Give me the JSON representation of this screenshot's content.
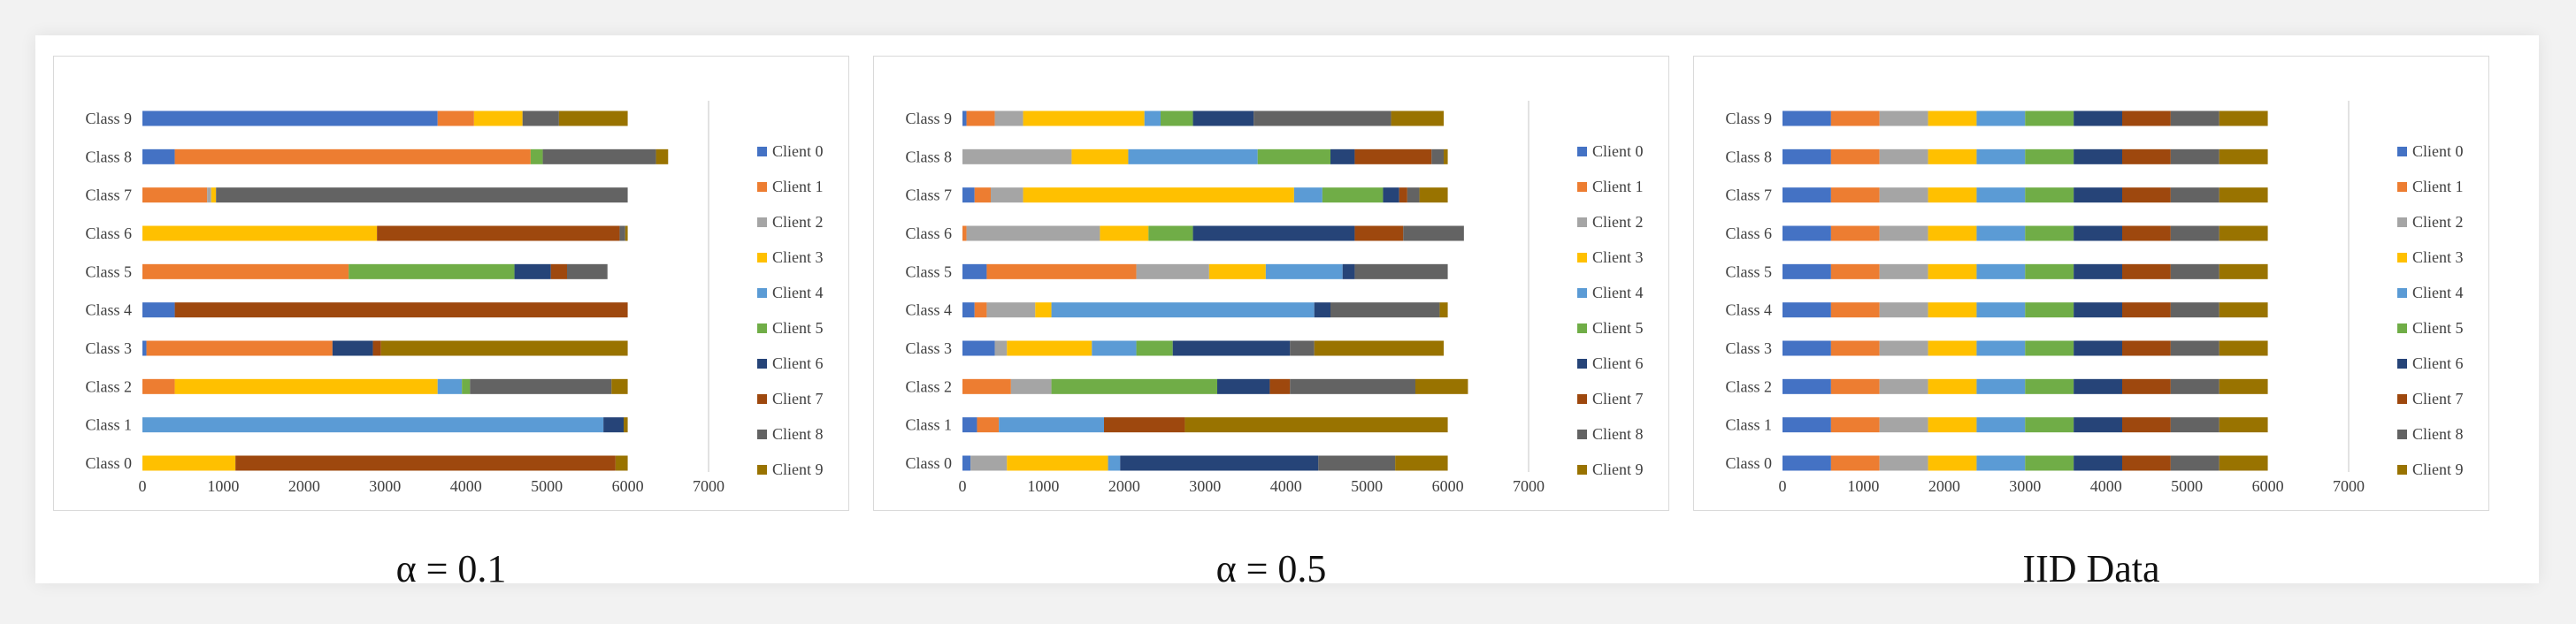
{
  "chart_data": [
    {
      "type": "bar",
      "orientation": "horizontal",
      "stacked": true,
      "caption": "α = 0.1",
      "categories": [
        "Class 0",
        "Class 1",
        "Class 2",
        "Class 3",
        "Class 4",
        "Class 5",
        "Class 6",
        "Class 7",
        "Class 8",
        "Class 9"
      ],
      "xticks": [
        "0",
        "1000",
        "2000",
        "3000",
        "4000",
        "5000",
        "6000",
        "7000"
      ],
      "xlim": [
        0,
        7000
      ],
      "grid": false,
      "legend": "right",
      "series": [
        {
          "name": "Client 0",
          "color": "#4472c4",
          "values": [
            0,
            0,
            0,
            50,
            400,
            0,
            0,
            0,
            400,
            3650
          ]
        },
        {
          "name": "Client 1",
          "color": "#ed7d31",
          "values": [
            0,
            0,
            400,
            2300,
            0,
            2550,
            0,
            800,
            4400,
            450
          ]
        },
        {
          "name": "Client 2",
          "color": "#a5a5a5",
          "values": [
            0,
            0,
            0,
            0,
            0,
            0,
            0,
            50,
            0,
            0
          ]
        },
        {
          "name": "Client 3",
          "color": "#ffc000",
          "values": [
            1150,
            0,
            3250,
            0,
            0,
            0,
            2900,
            60,
            0,
            600
          ]
        },
        {
          "name": "Client 4",
          "color": "#5b9bd5",
          "values": [
            0,
            5700,
            300,
            0,
            0,
            0,
            0,
            0,
            0,
            0
          ]
        },
        {
          "name": "Client 5",
          "color": "#70ad47",
          "values": [
            0,
            0,
            100,
            0,
            0,
            2050,
            0,
            0,
            150,
            0
          ]
        },
        {
          "name": "Client 6",
          "color": "#264478",
          "values": [
            0,
            250,
            0,
            500,
            0,
            450,
            0,
            0,
            0,
            0
          ]
        },
        {
          "name": "Client 7",
          "color": "#9e480e",
          "values": [
            4700,
            0,
            0,
            100,
            5600,
            200,
            3000,
            0,
            0,
            0
          ]
        },
        {
          "name": "Client 8",
          "color": "#636363",
          "values": [
            0,
            0,
            1750,
            0,
            0,
            500,
            70,
            5090,
            1400,
            450
          ]
        },
        {
          "name": "Client 9",
          "color": "#997300",
          "values": [
            150,
            50,
            200,
            3050,
            0,
            0,
            30,
            0,
            150,
            850
          ]
        }
      ]
    },
    {
      "type": "bar",
      "orientation": "horizontal",
      "stacked": true,
      "caption": "α = 0.5",
      "categories": [
        "Class 0",
        "Class 1",
        "Class 2",
        "Class 3",
        "Class 4",
        "Class 5",
        "Class 6",
        "Class 7",
        "Class 8",
        "Class 9"
      ],
      "xticks": [
        "0",
        "1000",
        "2000",
        "3000",
        "4000",
        "5000",
        "6000",
        "7000"
      ],
      "xlim": [
        0,
        7000
      ],
      "grid": false,
      "legend": "right",
      "series": [
        {
          "name": "Client 0",
          "color": "#4472c4",
          "values": [
            100,
            180,
            0,
            400,
            150,
            300,
            0,
            150,
            0,
            50
          ]
        },
        {
          "name": "Client 1",
          "color": "#ed7d31",
          "values": [
            0,
            270,
            600,
            0,
            150,
            1850,
            50,
            200,
            0,
            350
          ]
        },
        {
          "name": "Client 2",
          "color": "#a5a5a5",
          "values": [
            450,
            0,
            500,
            150,
            600,
            900,
            1650,
            400,
            1350,
            350
          ]
        },
        {
          "name": "Client 3",
          "color": "#ffc000",
          "values": [
            1250,
            0,
            0,
            1050,
            200,
            700,
            600,
            3350,
            700,
            1500
          ]
        },
        {
          "name": "Client 4",
          "color": "#5b9bd5",
          "values": [
            150,
            1300,
            0,
            550,
            3250,
            950,
            0,
            350,
            1600,
            200
          ]
        },
        {
          "name": "Client 5",
          "color": "#70ad47",
          "values": [
            0,
            0,
            2050,
            450,
            0,
            0,
            550,
            750,
            900,
            400
          ]
        },
        {
          "name": "Client 6",
          "color": "#264478",
          "values": [
            2450,
            0,
            650,
            1450,
            200,
            150,
            2000,
            200,
            300,
            750
          ]
        },
        {
          "name": "Client 7",
          "color": "#9e480e",
          "values": [
            0,
            1000,
            250,
            0,
            0,
            0,
            600,
            100,
            950,
            0
          ]
        },
        {
          "name": "Client 8",
          "color": "#636363",
          "values": [
            950,
            0,
            1550,
            300,
            1350,
            1150,
            750,
            150,
            150,
            1700
          ]
        },
        {
          "name": "Client 9",
          "color": "#997300",
          "values": [
            650,
            3250,
            650,
            1600,
            100,
            0,
            0,
            350,
            50,
            650
          ]
        }
      ]
    },
    {
      "type": "bar",
      "orientation": "horizontal",
      "stacked": true,
      "caption": "IID Data",
      "categories": [
        "Class 0",
        "Class 1",
        "Class 2",
        "Class 3",
        "Class 4",
        "Class 5",
        "Class 6",
        "Class 7",
        "Class 8",
        "Class 9"
      ],
      "xticks": [
        "0",
        "1000",
        "2000",
        "3000",
        "4000",
        "5000",
        "6000",
        "7000"
      ],
      "xlim": [
        0,
        7000
      ],
      "grid": false,
      "legend": "right",
      "series": [
        {
          "name": "Client 0",
          "color": "#4472c4",
          "values": [
            600,
            600,
            600,
            600,
            600,
            600,
            600,
            600,
            600,
            600
          ]
        },
        {
          "name": "Client 1",
          "color": "#ed7d31",
          "values": [
            600,
            600,
            600,
            600,
            600,
            600,
            600,
            600,
            600,
            600
          ]
        },
        {
          "name": "Client 2",
          "color": "#a5a5a5",
          "values": [
            600,
            600,
            600,
            600,
            600,
            600,
            600,
            600,
            600,
            600
          ]
        },
        {
          "name": "Client 3",
          "color": "#ffc000",
          "values": [
            600,
            600,
            600,
            600,
            600,
            600,
            600,
            600,
            600,
            600
          ]
        },
        {
          "name": "Client 4",
          "color": "#5b9bd5",
          "values": [
            600,
            600,
            600,
            600,
            600,
            600,
            600,
            600,
            600,
            600
          ]
        },
        {
          "name": "Client 5",
          "color": "#70ad47",
          "values": [
            600,
            600,
            600,
            600,
            600,
            600,
            600,
            600,
            600,
            600
          ]
        },
        {
          "name": "Client 6",
          "color": "#264478",
          "values": [
            600,
            600,
            600,
            600,
            600,
            600,
            600,
            600,
            600,
            600
          ]
        },
        {
          "name": "Client 7",
          "color": "#9e480e",
          "values": [
            600,
            600,
            600,
            600,
            600,
            600,
            600,
            600,
            600,
            600
          ]
        },
        {
          "name": "Client 8",
          "color": "#636363",
          "values": [
            600,
            600,
            600,
            600,
            600,
            600,
            600,
            600,
            600,
            600
          ]
        },
        {
          "name": "Client 9",
          "color": "#997300",
          "values": [
            600,
            600,
            600,
            600,
            600,
            600,
            600,
            600,
            600,
            600
          ]
        }
      ]
    }
  ]
}
